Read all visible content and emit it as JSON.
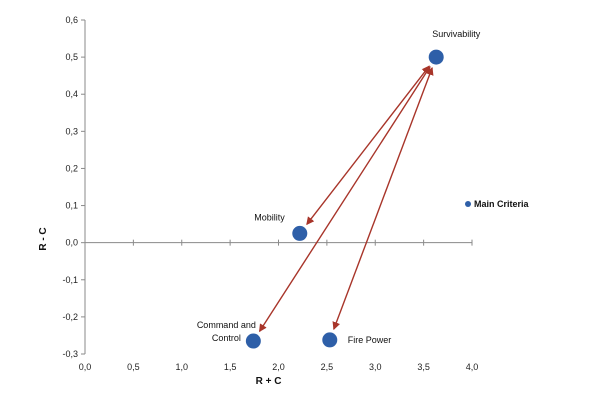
{
  "chart_data": {
    "type": "scatter",
    "xlabel": "R + C",
    "ylabel": "R - C",
    "xlim": [
      0.0,
      4.0
    ],
    "ylim": [
      -0.3,
      0.6
    ],
    "x_ticks": [
      "0,0",
      "0,5",
      "1,0",
      "1,5",
      "2,0",
      "2,5",
      "3,0",
      "3,5",
      "4,0"
    ],
    "x_tick_values": [
      0.0,
      0.5,
      1.0,
      1.5,
      2.0,
      2.5,
      3.0,
      3.5,
      4.0
    ],
    "y_ticks": [
      "0,6",
      "0,5",
      "0,4",
      "0,3",
      "0,2",
      "0,1",
      "0,0",
      "-0,1",
      "-0,2",
      "-0,3"
    ],
    "y_tick_values": [
      0.6,
      0.5,
      0.4,
      0.3,
      0.2,
      0.1,
      0.0,
      -0.1,
      -0.2,
      -0.3
    ],
    "grid": false,
    "legend": {
      "position": "right",
      "entries": [
        "Main Criteria"
      ]
    },
    "series": [
      {
        "name": "Main Criteria",
        "color": "#2e5fa8",
        "points": [
          {
            "label": "Survivability",
            "x": 3.63,
            "y": 0.5,
            "label_pos": "top-right"
          },
          {
            "label": "Mobility",
            "x": 2.22,
            "y": 0.025,
            "label_pos": "top-left"
          },
          {
            "label": "Command and",
            "label2": "Control",
            "x": 1.74,
            "y": -0.265,
            "label_pos": "left"
          },
          {
            "label": "Fire Power",
            "x": 2.53,
            "y": -0.262,
            "label_pos": "right"
          }
        ]
      }
    ],
    "arrows": [
      {
        "from": "Survivability",
        "to": "Mobility",
        "bidirectional": true
      },
      {
        "from": "Survivability",
        "to": "Command and",
        "bidirectional": true
      },
      {
        "from": "Survivability",
        "to": "Fire Power",
        "bidirectional": true
      }
    ],
    "arrow_color": "#a8352a"
  }
}
